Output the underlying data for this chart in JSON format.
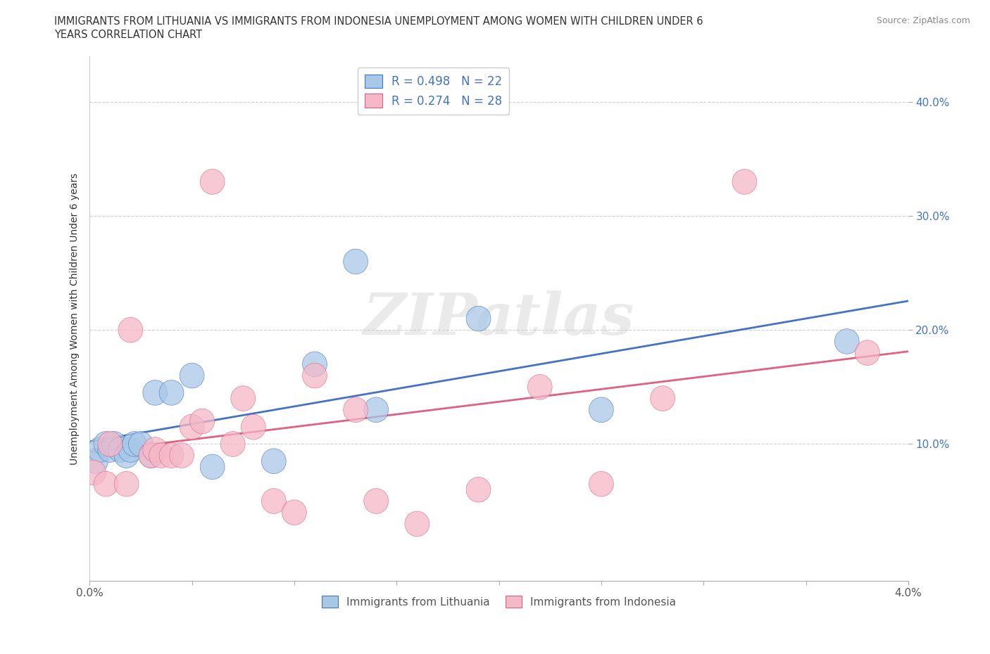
{
  "title_line1": "IMMIGRANTS FROM LITHUANIA VS IMMIGRANTS FROM INDONESIA UNEMPLOYMENT AMONG WOMEN WITH CHILDREN UNDER 6",
  "title_line2": "YEARS CORRELATION CHART",
  "source": "Source: ZipAtlas.com",
  "ylabel_label": "Unemployment Among Women with Children Under 6 years",
  "xlim": [
    0.0,
    0.04
  ],
  "ylim": [
    -0.02,
    0.44
  ],
  "ytick_vals": [
    0.1,
    0.2,
    0.3,
    0.4
  ],
  "ytick_labels": [
    "10.0%",
    "20.0%",
    "30.0%",
    "40.0%"
  ],
  "xtick_vals": [
    0.0,
    0.005,
    0.01,
    0.015,
    0.02,
    0.025,
    0.03,
    0.035,
    0.04
  ],
  "xtick_labels": [
    "0.0%",
    "",
    "",
    "",
    "",
    "",
    "",
    "",
    "4.0%"
  ],
  "lithuania_color": "#a8c8e8",
  "indonesia_color": "#f4b8c8",
  "line_lith_color": "#4472c4",
  "line_indo_color": "#e06080",
  "yaxis_color": "#4472c4",
  "watermark_text": "ZIPatlas",
  "R_lith": "0.498",
  "N_lith": "22",
  "R_indo": "0.274",
  "N_indo": "28",
  "legend_R_color": "#4472c4",
  "grid_color": "#d0d0d0",
  "lithuania_x": [
    0.0003,
    0.0005,
    0.0008,
    0.001,
    0.0012,
    0.0015,
    0.0018,
    0.002,
    0.0022,
    0.0025,
    0.003,
    0.0032,
    0.004,
    0.005,
    0.006,
    0.009,
    0.011,
    0.013,
    0.014,
    0.019,
    0.025,
    0.037
  ],
  "lithuania_y": [
    0.085,
    0.095,
    0.1,
    0.095,
    0.1,
    0.095,
    0.09,
    0.095,
    0.1,
    0.1,
    0.09,
    0.145,
    0.145,
    0.16,
    0.08,
    0.085,
    0.17,
    0.26,
    0.13,
    0.21,
    0.13,
    0.19
  ],
  "indonesia_x": [
    0.0002,
    0.0008,
    0.001,
    0.0018,
    0.002,
    0.003,
    0.0032,
    0.0035,
    0.004,
    0.0045,
    0.005,
    0.0055,
    0.006,
    0.007,
    0.0075,
    0.008,
    0.009,
    0.01,
    0.011,
    0.013,
    0.014,
    0.016,
    0.019,
    0.022,
    0.025,
    0.028,
    0.032,
    0.038
  ],
  "indonesia_y": [
    0.075,
    0.065,
    0.1,
    0.065,
    0.2,
    0.09,
    0.095,
    0.09,
    0.09,
    0.09,
    0.115,
    0.12,
    0.33,
    0.1,
    0.14,
    0.115,
    0.05,
    0.04,
    0.16,
    0.13,
    0.05,
    0.03,
    0.06,
    0.15,
    0.065,
    0.14,
    0.33,
    0.18
  ]
}
